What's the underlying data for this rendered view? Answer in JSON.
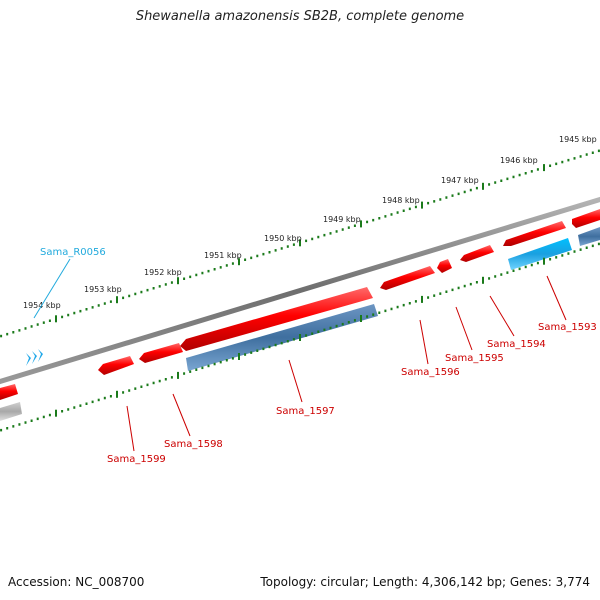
{
  "title": "Shewanella amazonensis SB2B, complete genome",
  "footer": {
    "accession": "Accession: NC_008700",
    "summary": "Topology: circular; Length: 4,306,142 bp; Genes: 3,774"
  },
  "scale_labels": [
    "1954 kbp",
    "1953 kbp",
    "1952 kbp",
    "1951 kbp",
    "1950 kbp",
    "1949 kbp",
    "1948 kbp",
    "1947 kbp",
    "1946 kbp",
    "1945 kbp"
  ],
  "genes": [
    {
      "id": "g1593",
      "label": "Sama_1593",
      "color": "#cc0000"
    },
    {
      "id": "g1594",
      "label": "Sama_1594",
      "color": "#cc0000"
    },
    {
      "id": "g1595",
      "label": "Sama_1595",
      "color": "#cc0000"
    },
    {
      "id": "g1596",
      "label": "Sama_1596",
      "color": "#cc0000"
    },
    {
      "id": "g1597",
      "label": "Sama_1597",
      "color": "#cc0000"
    },
    {
      "id": "g1598",
      "label": "Sama_1598",
      "color": "#cc0000"
    },
    {
      "id": "g1599",
      "label": "Sama_1599",
      "color": "#cc0000"
    },
    {
      "id": "r0056",
      "label": "Sama_R0056",
      "color": "#22aadd"
    }
  ],
  "colors": {
    "cds": "#ff0000",
    "feature_blue": "#4a7aaa",
    "feature_cyan": "#1ea7e8",
    "backbone": "#7a7a7a",
    "ticks": "#1a7a1a",
    "label_red": "#cc0000",
    "label_cyan": "#22aadd"
  }
}
